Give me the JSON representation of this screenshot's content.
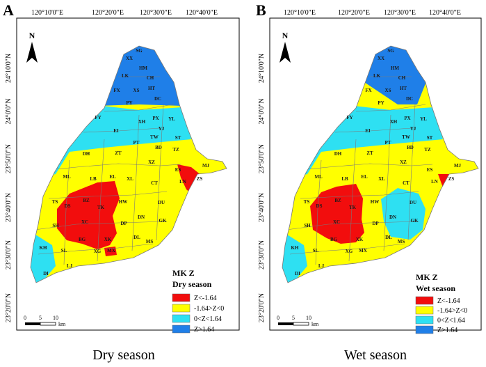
{
  "colors": {
    "very_neg": "#f20d0d",
    "neg": "#ffff00",
    "pos": "#2ee0f2",
    "very_pos": "#1f7fe8",
    "border": "#7a7a7a",
    "frame": "#000000"
  },
  "panels": [
    {
      "letter": "A",
      "caption": "Dry season",
      "legend": {
        "title": "MK Z",
        "subtitle": "Dry season",
        "items": [
          {
            "label": "Z<-1.64",
            "class": "very_neg"
          },
          {
            "label": "-1.64>Z<0",
            "class": "neg"
          },
          {
            "label": "0<Z<1.64",
            "class": "pos"
          },
          {
            "label": "Z>1.64",
            "class": "very_pos"
          }
        ]
      }
    },
    {
      "letter": "B",
      "caption": "Wet season",
      "legend": {
        "title": "MK Z",
        "subtitle": "Wet season",
        "items": [
          {
            "label": "Z<-1.64",
            "class": "very_neg"
          },
          {
            "label": "-1.64>Z<0",
            "class": "neg"
          },
          {
            "label": "0<Z<1.64",
            "class": "pos"
          },
          {
            "label": "Z>1.64",
            "class": "very_pos"
          }
        ]
      }
    }
  ],
  "lon_ticks": [
    "120°10'0\"E",
    "120°20'0\"E",
    "120°30'0\"E",
    "120°40'0\"E"
  ],
  "lat_ticks": [
    "24°10'0\"N",
    "24°0'0\"N",
    "23°50'0\"N",
    "23°40'0\"N",
    "23°30'0\"N",
    "23°20'0\"N"
  ],
  "north_label": "N",
  "scale_bar": {
    "ticks": [
      "0",
      "5",
      "10"
    ],
    "unit": "km"
  },
  "district_labels": [
    "SG",
    "XX",
    "HM",
    "LK",
    "CH",
    "FX",
    "XS",
    "HT",
    "DC",
    "PY",
    "FY",
    "PX",
    "YL",
    "EI",
    "XH",
    "YJ",
    "ST",
    "TW",
    "PT",
    "DH",
    "BD",
    "ZT",
    "TZ",
    "XZ",
    "MJ",
    "ES",
    "EL",
    "ML",
    "LB",
    "XL",
    "CT",
    "LN",
    "ZS",
    "HW",
    "DU",
    "TS",
    "DS",
    "BZ",
    "TK",
    "SH",
    "XC",
    "DN",
    "DP",
    "GK",
    "BG",
    "XK",
    "DL",
    "SL",
    "KH",
    "XG",
    "MX",
    "MS",
    "LJ",
    "DI"
  ]
}
